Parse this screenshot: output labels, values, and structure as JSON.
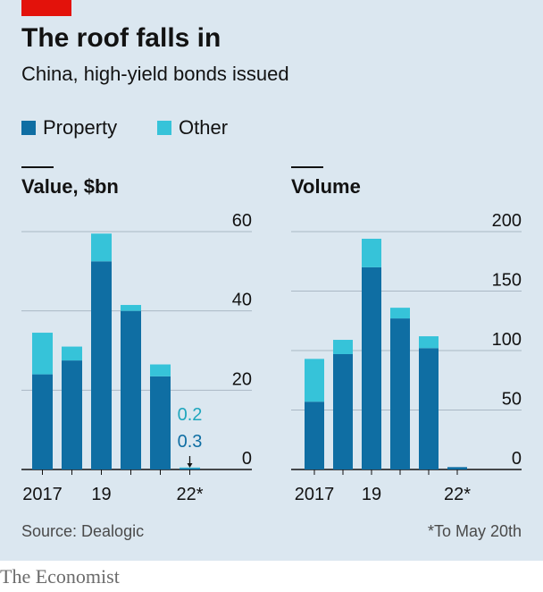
{
  "header": {
    "title": "The roof falls in",
    "subtitle": "China, high-yield bonds issued"
  },
  "legend": [
    {
      "label": "Property",
      "color": "#0f6ea3"
    },
    {
      "label": "Other",
      "color": "#36c3d9"
    }
  ],
  "colors": {
    "property": "#0f6ea3",
    "other": "#36c3d9",
    "grid": "#aab8c5",
    "brand_red": "#e3120b"
  },
  "footer": {
    "source": "Source: Dealogic",
    "note": "*To May 20th",
    "brand": "The Economist"
  },
  "chart_data": [
    {
      "type": "bar",
      "stacked": true,
      "title": "Value, $bn",
      "categories": [
        "2017",
        "2018",
        "2019",
        "2020",
        "2021",
        "2022*"
      ],
      "x_tick_labels": [
        "2017",
        "",
        "19",
        "",
        "",
        "22*"
      ],
      "series": [
        {
          "name": "Property",
          "values": [
            24,
            27.5,
            52.5,
            40,
            23.5,
            0.3
          ]
        },
        {
          "name": "Other",
          "values": [
            10.5,
            3.5,
            7,
            1.5,
            3,
            0.2
          ]
        }
      ],
      "ylim": [
        0,
        60
      ],
      "yticks": [
        0,
        20,
        40,
        60
      ],
      "grid": true,
      "y_axis_side": "right",
      "annotations": [
        {
          "category": "2022*",
          "series": "Other",
          "text": "0.2"
        },
        {
          "category": "2022*",
          "series": "Property",
          "text": "0.3"
        }
      ]
    },
    {
      "type": "bar",
      "stacked": true,
      "title": "Volume",
      "categories": [
        "2017",
        "2018",
        "2019",
        "2020",
        "2021",
        "2022*"
      ],
      "x_tick_labels": [
        "2017",
        "",
        "19",
        "",
        "",
        "22*"
      ],
      "series": [
        {
          "name": "Property",
          "values": [
            57,
            97,
            170,
            127,
            102,
            2
          ]
        },
        {
          "name": "Other",
          "values": [
            36,
            12,
            24,
            9,
            10,
            0
          ]
        }
      ],
      "ylim": [
        0,
        200
      ],
      "yticks": [
        0,
        50,
        100,
        150,
        200
      ],
      "grid": true,
      "y_axis_side": "right"
    }
  ]
}
